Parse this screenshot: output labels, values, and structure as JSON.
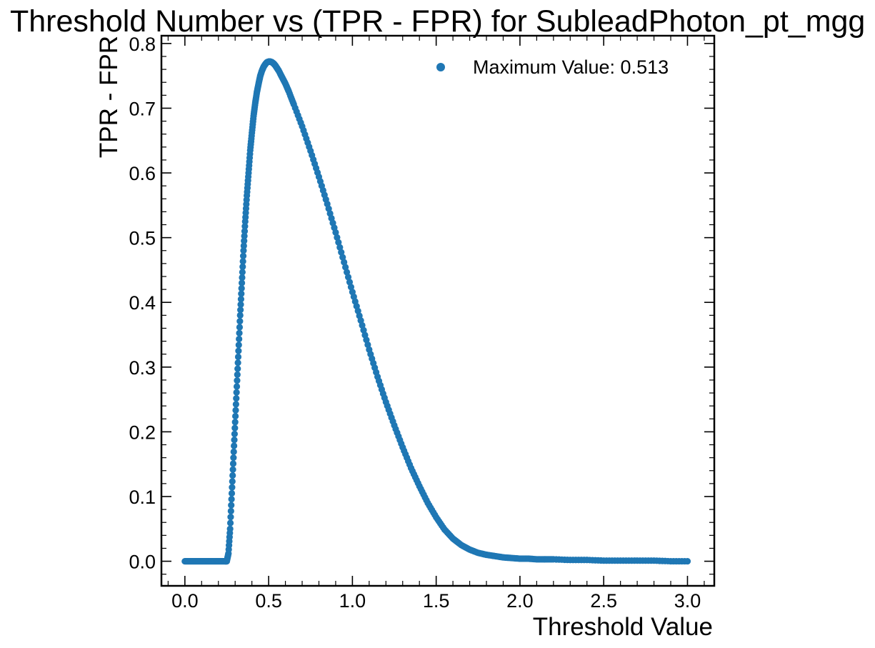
{
  "chart_data": {
    "type": "scatter",
    "title": "Threshold Number vs (TPR - FPR) for SubleadPhoton_pt_mgg",
    "xlabel": "Threshold Value",
    "ylabel": "TPR - FPR",
    "xlim": [
      -0.14,
      3.16
    ],
    "ylim": [
      -0.038,
      0.812
    ],
    "xticks": [
      "0.0",
      "0.5",
      "1.0",
      "1.5",
      "2.0",
      "2.5",
      "3.0"
    ],
    "yticks": [
      "0.0",
      "0.1",
      "0.2",
      "0.3",
      "0.4",
      "0.5",
      "0.6",
      "0.7",
      "0.8"
    ],
    "grid": false,
    "legend_position": "top-right",
    "colors": {
      "series": "#1f77b4",
      "axes": "#000000"
    },
    "series": [
      {
        "name": "Maximum Value: 0.513",
        "marker": "circle",
        "x": [
          0.0,
          0.02,
          0.04,
          0.06,
          0.08,
          0.1,
          0.12,
          0.14,
          0.16,
          0.18,
          0.2,
          0.22,
          0.24,
          0.25,
          0.26,
          0.27,
          0.28,
          0.29,
          0.3,
          0.31,
          0.32,
          0.33,
          0.34,
          0.35,
          0.36,
          0.37,
          0.38,
          0.39,
          0.4,
          0.41,
          0.42,
          0.43,
          0.44,
          0.45,
          0.46,
          0.47,
          0.48,
          0.49,
          0.5,
          0.51,
          0.52,
          0.53,
          0.54,
          0.55,
          0.56,
          0.58,
          0.6,
          0.62,
          0.65,
          0.7,
          0.75,
          0.8,
          0.85,
          0.9,
          0.95,
          1.0,
          1.05,
          1.1,
          1.15,
          1.2,
          1.25,
          1.3,
          1.35,
          1.4,
          1.45,
          1.5,
          1.55,
          1.6,
          1.65,
          1.7,
          1.75,
          1.8,
          1.85,
          1.9,
          1.95,
          2.0,
          2.05,
          2.1,
          2.15,
          2.2,
          2.3,
          2.4,
          2.5,
          2.6,
          2.7,
          2.8,
          2.9,
          3.0
        ],
        "y": [
          0.0,
          0.0,
          0.0,
          0.0,
          0.0,
          0.0,
          0.0,
          0.0,
          0.0,
          0.0,
          0.0,
          0.0,
          0.0,
          0.0,
          0.012,
          0.05,
          0.105,
          0.16,
          0.215,
          0.27,
          0.325,
          0.38,
          0.43,
          0.48,
          0.525,
          0.565,
          0.6,
          0.635,
          0.662,
          0.688,
          0.708,
          0.725,
          0.738,
          0.75,
          0.758,
          0.764,
          0.768,
          0.771,
          0.772,
          0.772,
          0.771,
          0.769,
          0.766,
          0.762,
          0.758,
          0.748,
          0.738,
          0.726,
          0.706,
          0.672,
          0.634,
          0.594,
          0.552,
          0.508,
          0.462,
          0.416,
          0.372,
          0.327,
          0.285,
          0.246,
          0.21,
          0.176,
          0.144,
          0.116,
          0.09,
          0.068,
          0.049,
          0.035,
          0.025,
          0.018,
          0.013,
          0.01,
          0.008,
          0.006,
          0.005,
          0.004,
          0.004,
          0.003,
          0.003,
          0.003,
          0.002,
          0.002,
          0.001,
          0.001,
          0.001,
          0.001,
          0.0,
          0.0
        ]
      }
    ]
  }
}
